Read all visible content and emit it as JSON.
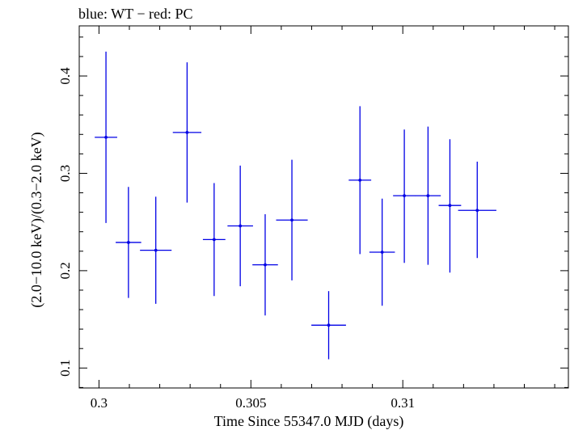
{
  "chart_data": {
    "type": "scatter",
    "title": "blue: WT − red: PC",
    "xlabel": "Time Since 55347.0 MJD (days)",
    "ylabel": "(2.0−10.0 keV)/(0.3−2.0 keV)",
    "xlim": [
      0.29935,
      0.31545
    ],
    "ylim": [
      0.0795,
      0.4515
    ],
    "xticks": [
      0.3,
      0.305,
      0.31
    ],
    "xtick_labels": [
      "0.3",
      "0.305",
      "0.31"
    ],
    "yticks": [
      0.1,
      0.2,
      0.3,
      0.4
    ],
    "ytick_labels": [
      "0.1",
      "0.2",
      "0.3",
      "0.4"
    ],
    "grid": false,
    "series": [
      {
        "color": "#0000e6",
        "points": [
          {
            "x": 0.30023,
            "xerr": 0.00037,
            "y": 0.337,
            "ylo": 0.249,
            "yhi": 0.425
          },
          {
            "x": 0.30097,
            "xerr": 0.00042,
            "y": 0.229,
            "ylo": 0.172,
            "yhi": 0.286
          },
          {
            "x": 0.30187,
            "xerr": 0.00052,
            "y": 0.221,
            "ylo": 0.166,
            "yhi": 0.276
          },
          {
            "x": 0.3029,
            "xerr": 0.00047,
            "y": 0.342,
            "ylo": 0.27,
            "yhi": 0.414
          },
          {
            "x": 0.30379,
            "xerr": 0.00037,
            "y": 0.232,
            "ylo": 0.174,
            "yhi": 0.29
          },
          {
            "x": 0.30465,
            "xerr": 0.00042,
            "y": 0.246,
            "ylo": 0.184,
            "yhi": 0.308
          },
          {
            "x": 0.30547,
            "xerr": 0.00042,
            "y": 0.206,
            "ylo": 0.154,
            "yhi": 0.258
          },
          {
            "x": 0.30635,
            "xerr": 0.00052,
            "y": 0.252,
            "ylo": 0.19,
            "yhi": 0.314
          },
          {
            "x": 0.30756,
            "xerr": 0.00057,
            "y": 0.144,
            "ylo": 0.109,
            "yhi": 0.179
          },
          {
            "x": 0.30859,
            "xerr": 0.00037,
            "y": 0.293,
            "ylo": 0.217,
            "yhi": 0.369
          },
          {
            "x": 0.30932,
            "xerr": 0.00042,
            "y": 0.219,
            "ylo": 0.164,
            "yhi": 0.274
          },
          {
            "x": 0.31005,
            "xerr": 0.00037,
            "y": 0.277,
            "ylo": 0.208,
            "yhi": 0.345
          },
          {
            "x": 0.31083,
            "xerr": 0.00042,
            "y": 0.277,
            "ylo": 0.206,
            "yhi": 0.348
          },
          {
            "x": 0.31155,
            "xerr": 0.00037,
            "y": 0.267,
            "ylo": 0.198,
            "yhi": 0.335
          },
          {
            "x": 0.31245,
            "xerr": 0.00063,
            "y": 0.262,
            "ylo": 0.213,
            "yhi": 0.312
          }
        ]
      }
    ]
  }
}
